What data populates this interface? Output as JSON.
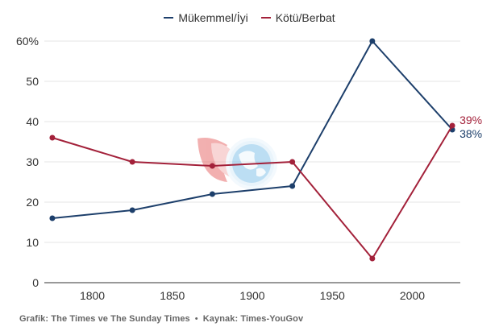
{
  "chart_data": {
    "type": "line",
    "x": [
      1775,
      1825,
      1875,
      1925,
      1975,
      2025
    ],
    "series": [
      {
        "name": "Mükemmel/İyi",
        "color": "#1d3f6b",
        "values": [
          16,
          18,
          22,
          24,
          60,
          38
        ],
        "end_label": "38%"
      },
      {
        "name": "Kötü/Berbat",
        "color": "#a3213a",
        "values": [
          36,
          30,
          29,
          30,
          6,
          39
        ],
        "end_label": "39%"
      }
    ],
    "xlim": [
      1770,
      2030
    ],
    "ylim": [
      0,
      60
    ],
    "x_ticks": [
      1800,
      1850,
      1900,
      1950,
      2000
    ],
    "y_ticks": [
      0,
      10,
      20,
      30,
      40,
      50,
      60
    ],
    "y_tick_labels": [
      "0",
      "10",
      "20",
      "30",
      "40",
      "50",
      "60%"
    ],
    "grid": "horizontal",
    "legend": "top-center",
    "title": "",
    "xlabel": "",
    "ylabel": ""
  },
  "footer": {
    "grafik": "Grafik: The Times ve The Sunday Times",
    "separator": "•",
    "kaynak": "Kaynak: Times-YouGov"
  },
  "watermark": {
    "icon": "globe-logo-watermark"
  }
}
